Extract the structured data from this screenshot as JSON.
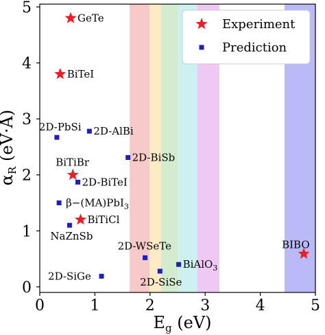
{
  "chart_data": {
    "type": "scatter",
    "xlabel_main": "E",
    "xlabel_sub": "g",
    "xlabel_unit": " (eV)",
    "ylabel_main": "α",
    "ylabel_sub": "R",
    "ylabel_unit": " (eV·Å)",
    "xlim": [
      0,
      5
    ],
    "ylim": [
      -0.1,
      5.05
    ],
    "xticks": [
      "0",
      "1",
      "2",
      "3",
      "4",
      "5"
    ],
    "yticks": [
      "0",
      "1",
      "2",
      "3",
      "4",
      "5"
    ],
    "grid": false,
    "legend": {
      "position": "top-right",
      "entries": [
        {
          "label": "Experiment",
          "marker": "star",
          "color": "#ee1c24"
        },
        {
          "label": "Prediction",
          "marker": "square",
          "color": "#1f1fbf"
        }
      ]
    },
    "bands": [
      {
        "x0": 1.63,
        "x1": 1.99,
        "color": "#f8c9c9"
      },
      {
        "x0": 1.99,
        "x1": 2.2,
        "color": "#fcebc4"
      },
      {
        "x0": 2.2,
        "x1": 2.5,
        "color": "#d3ebcf"
      },
      {
        "x0": 2.5,
        "x1": 2.86,
        "color": "#cdf1f1"
      },
      {
        "x0": 2.86,
        "x1": 3.26,
        "color": "#efc8f3"
      },
      {
        "x0": 4.44,
        "x1": 5.0,
        "color": "#b9baf7"
      }
    ],
    "series": [
      {
        "name": "Experiment",
        "marker": "star",
        "color": "#ee1c24",
        "points": [
          {
            "x": 0.56,
            "y": 4.8,
            "label": "GeTe"
          },
          {
            "x": 0.37,
            "y": 3.8,
            "label": "BiTeI"
          },
          {
            "x": 0.6,
            "y": 2.0,
            "label": "BiTiBr"
          },
          {
            "x": 0.74,
            "y": 1.2,
            "label": "BiTiCl"
          },
          {
            "x": 4.79,
            "y": 0.59,
            "label": "BIBO"
          }
        ]
      },
      {
        "name": "Prediction",
        "marker": "square",
        "color": "#1f1fbf",
        "points": [
          {
            "x": 0.31,
            "y": 2.67,
            "label": "2D-PbSi"
          },
          {
            "x": 0.9,
            "y": 2.78,
            "label": "2D-AlBi"
          },
          {
            "x": 1.6,
            "y": 2.31,
            "label": "2D-BiSb"
          },
          {
            "x": 0.69,
            "y": 1.87,
            "label": "2D-BiTeI"
          },
          {
            "x": 0.35,
            "y": 1.5,
            "label": "β−(MA)PbI",
            "label_sub": "3"
          },
          {
            "x": 0.54,
            "y": 1.1,
            "label": "NaZnSb"
          },
          {
            "x": 1.91,
            "y": 0.52,
            "label": "2D-WSeTe"
          },
          {
            "x": 2.52,
            "y": 0.4,
            "label": "BiAlO",
            "label_sub": "3"
          },
          {
            "x": 2.18,
            "y": 0.28,
            "label": "2D-SiSe"
          },
          {
            "x": 1.12,
            "y": 0.19,
            "label": "2D-SiGe"
          }
        ]
      }
    ]
  }
}
